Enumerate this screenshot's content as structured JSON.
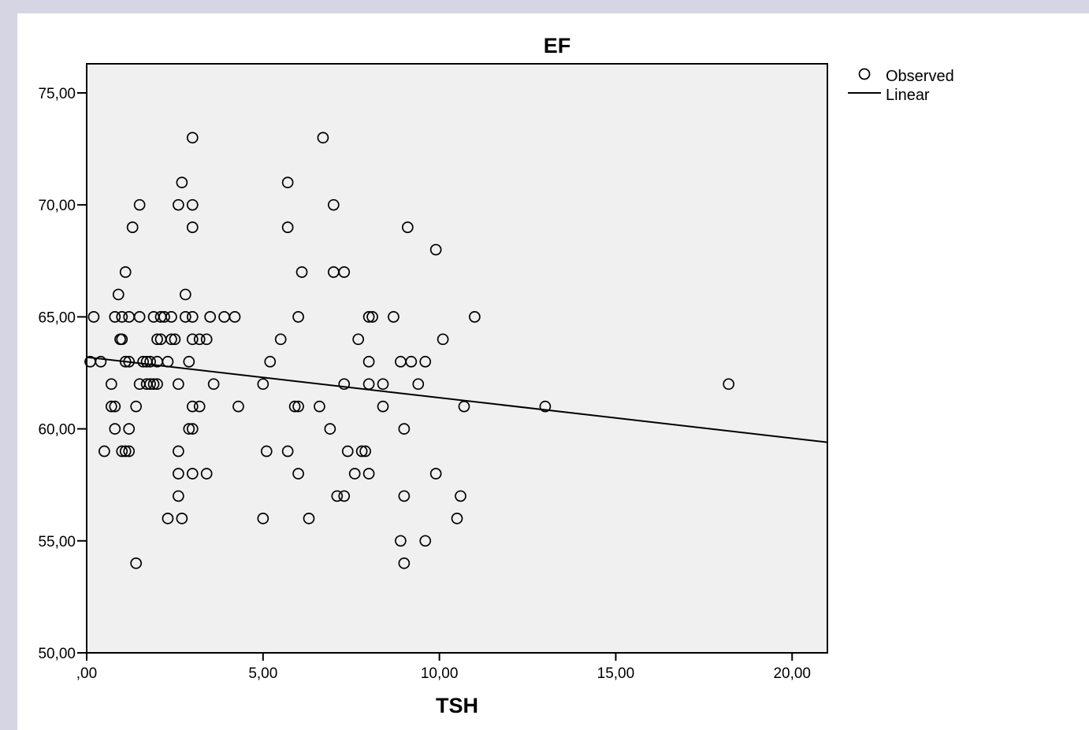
{
  "chart_data": {
    "type": "scatter",
    "title": "EF",
    "xlabel": "TSH",
    "ylabel": "",
    "xlim": [
      0,
      21
    ],
    "ylim": [
      50,
      76.3
    ],
    "x_ticks": [
      0,
      5,
      10,
      15,
      20
    ],
    "x_tick_labels": [
      ",00",
      "5,00",
      "10,00",
      "15,00",
      "20,00"
    ],
    "y_ticks": [
      50,
      55,
      60,
      65,
      70,
      75
    ],
    "y_tick_labels": [
      "50,00",
      "55,00",
      "60,00",
      "65,00",
      "70,00",
      "75,00"
    ],
    "grid": false,
    "legend_position": "right-top",
    "colors": {
      "plot_background": "#f0f0f0",
      "marker_stroke": "#000000",
      "line": "#000000",
      "page_background": "#d6d5e3"
    },
    "series": [
      {
        "name": "Observed",
        "kind": "points",
        "points": [
          [
            3.0,
            73
          ],
          [
            6.7,
            73
          ],
          [
            2.7,
            71
          ],
          [
            5.7,
            71
          ],
          [
            1.5,
            70
          ],
          [
            2.6,
            70
          ],
          [
            3.0,
            70
          ],
          [
            7.0,
            70
          ],
          [
            1.3,
            69
          ],
          [
            3.0,
            69
          ],
          [
            5.7,
            69
          ],
          [
            9.1,
            69
          ],
          [
            9.9,
            68
          ],
          [
            1.1,
            67
          ],
          [
            6.1,
            67
          ],
          [
            7.0,
            67
          ],
          [
            7.3,
            67
          ],
          [
            0.9,
            66
          ],
          [
            2.8,
            66
          ],
          [
            0.2,
            65
          ],
          [
            0.8,
            65
          ],
          [
            1.0,
            65
          ],
          [
            1.2,
            65
          ],
          [
            1.5,
            65
          ],
          [
            1.9,
            65
          ],
          [
            2.1,
            65
          ],
          [
            2.2,
            65
          ],
          [
            2.4,
            65
          ],
          [
            2.8,
            65
          ],
          [
            3.0,
            65
          ],
          [
            3.5,
            65
          ],
          [
            3.9,
            65
          ],
          [
            4.2,
            65
          ],
          [
            6.0,
            65
          ],
          [
            8.0,
            65
          ],
          [
            8.1,
            65
          ],
          [
            8.7,
            65
          ],
          [
            11.0,
            65
          ],
          [
            0.95,
            64
          ],
          [
            1.0,
            64
          ],
          [
            2.0,
            64
          ],
          [
            2.1,
            64
          ],
          [
            2.4,
            64
          ],
          [
            2.5,
            64
          ],
          [
            3.0,
            64
          ],
          [
            3.2,
            64
          ],
          [
            3.4,
            64
          ],
          [
            5.5,
            64
          ],
          [
            7.7,
            64
          ],
          [
            10.1,
            64
          ],
          [
            0.1,
            63
          ],
          [
            0.4,
            63
          ],
          [
            1.1,
            63
          ],
          [
            1.2,
            63
          ],
          [
            1.6,
            63
          ],
          [
            1.7,
            63
          ],
          [
            1.8,
            63
          ],
          [
            2.0,
            63
          ],
          [
            2.3,
            63
          ],
          [
            2.9,
            63
          ],
          [
            5.2,
            63
          ],
          [
            8.0,
            63
          ],
          [
            8.9,
            63
          ],
          [
            9.2,
            63
          ],
          [
            9.6,
            63
          ],
          [
            0.7,
            62
          ],
          [
            1.5,
            62
          ],
          [
            1.7,
            62
          ],
          [
            1.8,
            62
          ],
          [
            1.9,
            62
          ],
          [
            2.0,
            62
          ],
          [
            2.6,
            62
          ],
          [
            3.6,
            62
          ],
          [
            5.0,
            62
          ],
          [
            7.3,
            62
          ],
          [
            8.0,
            62
          ],
          [
            8.4,
            62
          ],
          [
            9.4,
            62
          ],
          [
            18.2,
            62
          ],
          [
            0.7,
            61
          ],
          [
            0.8,
            61
          ],
          [
            1.4,
            61
          ],
          [
            3.0,
            61
          ],
          [
            3.2,
            61
          ],
          [
            4.3,
            61
          ],
          [
            5.9,
            61
          ],
          [
            6.0,
            61
          ],
          [
            6.6,
            61
          ],
          [
            8.4,
            61
          ],
          [
            10.7,
            61
          ],
          [
            13.0,
            61
          ],
          [
            0.8,
            60
          ],
          [
            1.2,
            60
          ],
          [
            2.9,
            60
          ],
          [
            3.0,
            60
          ],
          [
            6.9,
            60
          ],
          [
            9.0,
            60
          ],
          [
            0.5,
            59
          ],
          [
            1.0,
            59
          ],
          [
            1.1,
            59
          ],
          [
            1.2,
            59
          ],
          [
            2.6,
            59
          ],
          [
            5.1,
            59
          ],
          [
            5.7,
            59
          ],
          [
            7.4,
            59
          ],
          [
            7.8,
            59
          ],
          [
            7.9,
            59
          ],
          [
            2.6,
            58
          ],
          [
            3.0,
            58
          ],
          [
            3.4,
            58
          ],
          [
            6.0,
            58
          ],
          [
            7.6,
            58
          ],
          [
            8.0,
            58
          ],
          [
            9.9,
            58
          ],
          [
            2.6,
            57
          ],
          [
            7.1,
            57
          ],
          [
            7.3,
            57
          ],
          [
            9.0,
            57
          ],
          [
            10.6,
            57
          ],
          [
            2.3,
            56
          ],
          [
            2.7,
            56
          ],
          [
            5.0,
            56
          ],
          [
            6.3,
            56
          ],
          [
            10.5,
            56
          ],
          [
            8.9,
            55
          ],
          [
            9.6,
            55
          ],
          [
            1.4,
            54
          ],
          [
            9.0,
            54
          ]
        ]
      },
      {
        "name": "Linear",
        "kind": "line",
        "points": [
          [
            0,
            63.2
          ],
          [
            21,
            59.4
          ]
        ]
      }
    ]
  }
}
